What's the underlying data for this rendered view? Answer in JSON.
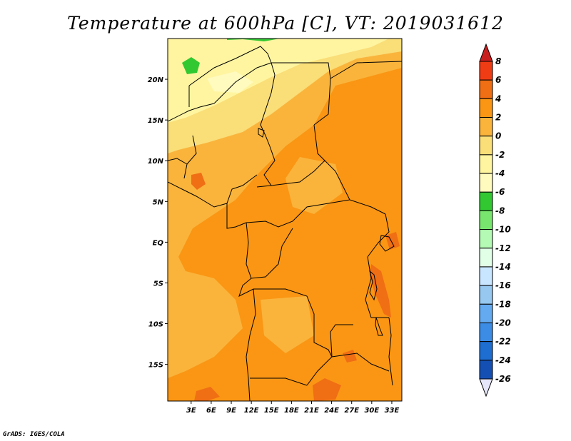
{
  "title": "Temperature at 600hPa [C], VT: 2019031612",
  "credit": "GrADS: IGES/COLA",
  "map": {
    "lat_range": [
      -19.5,
      25
    ],
    "lon_range": [
      -0.5,
      34.5
    ],
    "lat_ticks": [
      {
        "value": 20,
        "label": "20N"
      },
      {
        "value": 15,
        "label": "15N"
      },
      {
        "value": 10,
        "label": "10N"
      },
      {
        "value": 5,
        "label": "5N"
      },
      {
        "value": 0,
        "label": "EQ"
      },
      {
        "value": -5,
        "label": "5S"
      },
      {
        "value": -10,
        "label": "10S"
      },
      {
        "value": -15,
        "label": "15S"
      }
    ],
    "lon_ticks": [
      {
        "value": 3,
        "label": "3E"
      },
      {
        "value": 6,
        "label": "6E"
      },
      {
        "value": 9,
        "label": "9E"
      },
      {
        "value": 12,
        "label": "12E"
      },
      {
        "value": 15,
        "label": "15E"
      },
      {
        "value": 18,
        "label": "18E"
      },
      {
        "value": 21,
        "label": "21E"
      },
      {
        "value": 24,
        "label": "24E"
      },
      {
        "value": 27,
        "label": "27E"
      },
      {
        "value": 30,
        "label": "30E"
      },
      {
        "value": 33,
        "label": "33E"
      }
    ]
  },
  "colorbar": {
    "labels": [
      "8",
      "6",
      "4",
      "2",
      "0",
      "-2",
      "-4",
      "-6",
      "-8",
      "-10",
      "-12",
      "-14",
      "-16",
      "-18",
      "-20",
      "-22",
      "-24",
      "-26"
    ],
    "colors": [
      "#c81e1e",
      "#f03c14",
      "#f06e14",
      "#fa9614",
      "#fab43c",
      "#fade78",
      "#fff5a0",
      "#fffabe",
      "#32c832",
      "#78e66e",
      "#b4fab4",
      "#e1ffe6",
      "#c8e6ff",
      "#96c8f0",
      "#64aaf0",
      "#3c8ce6",
      "#1e6ed2",
      "#1450b4",
      "#0a3296",
      "#0a0a78",
      "#e6e6fa"
    ]
  },
  "fields": {
    "background_color": "#fa9614",
    "regions": [
      {
        "name": "cold-north",
        "color": "#fffabe"
      },
      {
        "name": "cool-north",
        "color": "#fff5a0"
      },
      {
        "name": "mild-north",
        "color": "#fade78"
      },
      {
        "name": "warm-band",
        "color": "#fab43c"
      },
      {
        "name": "hot-spots",
        "color": "#f06e14"
      },
      {
        "name": "green-patch",
        "color": "#32c832"
      }
    ]
  }
}
